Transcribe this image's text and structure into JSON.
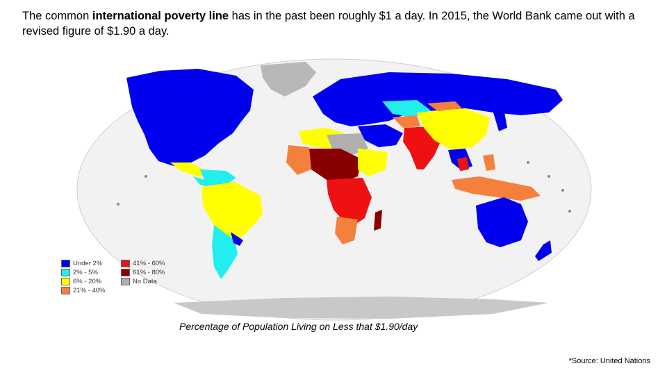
{
  "headline": {
    "part1": "The common ",
    "bold": "international poverty line",
    "part2": " has in the past been roughly $1 a day. In 2015, the World Bank came out with a revised figure of $1.90 a day."
  },
  "map": {
    "caption": "Percentage of Population Living on Less that $1.90/day",
    "legend": [
      {
        "label": "Under 2%",
        "color": "#0000ee"
      },
      {
        "label": "41% - 60%",
        "color": "#ee1111"
      },
      {
        "label": "2% - 5%",
        "color": "#22eeee"
      },
      {
        "label": "61% - 80%",
        "color": "#880000"
      },
      {
        "label": "6% - 20%",
        "color": "#ffff00"
      },
      {
        "label": "No Data",
        "color": "#b0b0b0"
      },
      {
        "label": "21% - 40%",
        "color": "#f5803d"
      }
    ]
  },
  "source": "*Source: United Nations"
}
